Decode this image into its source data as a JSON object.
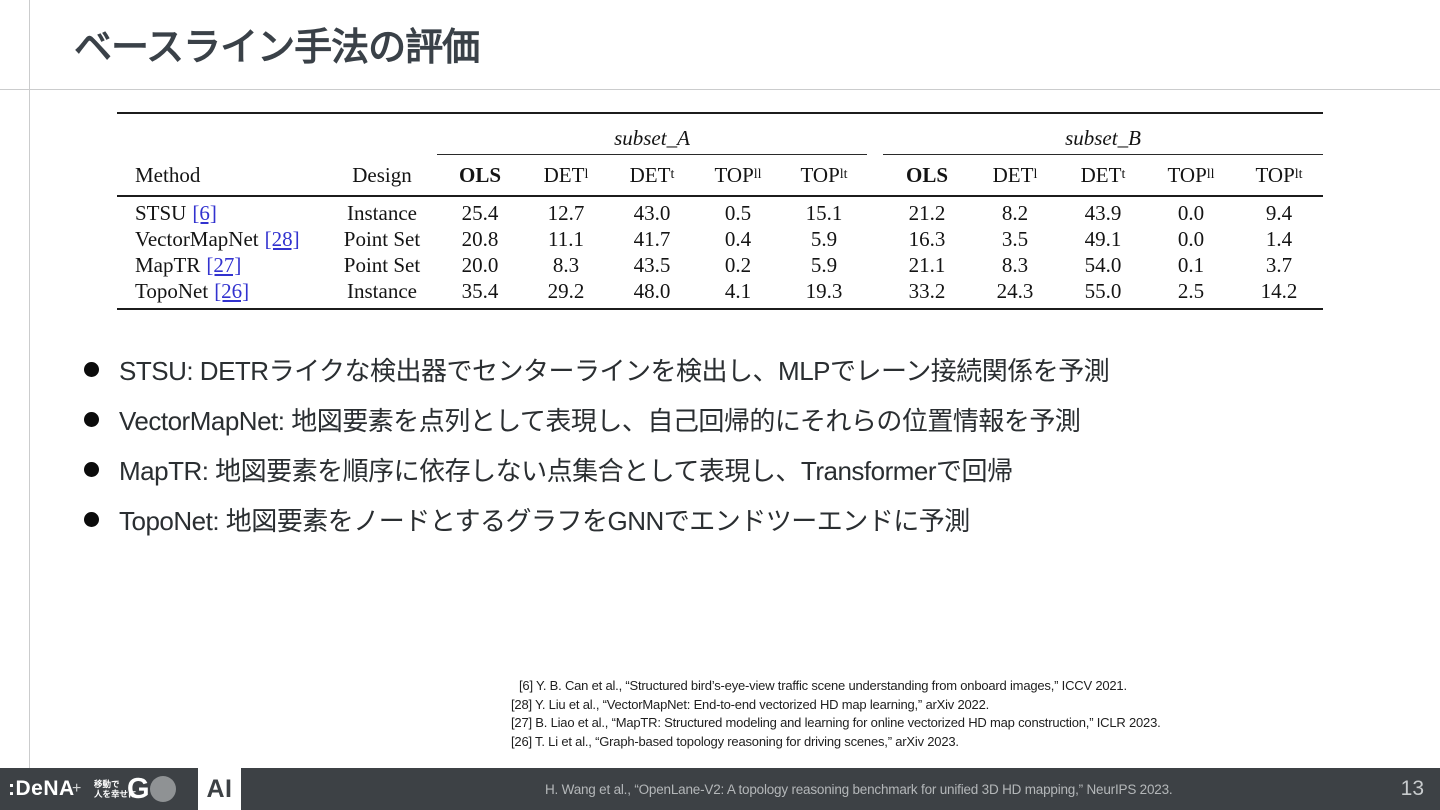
{
  "title": "ベースライン手法の評価",
  "table": {
    "group_headers": [
      "subset_A",
      "subset_B"
    ],
    "method_header": "Method",
    "design_header": "Design",
    "metric_columns": [
      {
        "base": "OLS",
        "sub": "",
        "bold": true
      },
      {
        "base": "DET",
        "sub": "l",
        "bold": false
      },
      {
        "base": "DET",
        "sub": "t",
        "bold": false
      },
      {
        "base": "TOP",
        "sub": "ll",
        "bold": false
      },
      {
        "base": "TOP",
        "sub": "lt",
        "bold": false
      }
    ],
    "rows": [
      {
        "method": "STSU",
        "ref": "[6]",
        "design": "Instance",
        "subset_a": [
          "25.4",
          "12.7",
          "43.0",
          "0.5",
          "15.1"
        ],
        "subset_b": [
          "21.2",
          "8.2",
          "43.9",
          "0.0",
          "9.4"
        ]
      },
      {
        "method": "VectorMapNet",
        "ref": "[28]",
        "design": "Point Set",
        "subset_a": [
          "20.8",
          "11.1",
          "41.7",
          "0.4",
          "5.9"
        ],
        "subset_b": [
          "16.3",
          "3.5",
          "49.1",
          "0.0",
          "1.4"
        ]
      },
      {
        "method": "MapTR",
        "ref": "[27]",
        "design": "Point Set",
        "subset_a": [
          "20.0",
          "8.3",
          "43.5",
          "0.2",
          "5.9"
        ],
        "subset_b": [
          "21.1",
          "8.3",
          "54.0",
          "0.1",
          "3.7"
        ]
      },
      {
        "method": "TopoNet",
        "ref": "[26]",
        "design": "Instance",
        "subset_a": [
          "35.4",
          "29.2",
          "48.0",
          "4.1",
          "19.3"
        ],
        "subset_b": [
          "33.2",
          "24.3",
          "55.0",
          "2.5",
          "14.2"
        ]
      }
    ]
  },
  "bullets": [
    "STSU: DETRライクな検出器でセンターラインを検出し、MLPでレーン接続関係を予測",
    "VectorMapNet: 地図要素を点列として表現し、自己回帰的にそれらの位置情報を予測",
    "MapTR: 地図要素を順序に依存しない点集合として表現し、Transformerで回帰",
    "TopoNet: 地図要素をノードとするグラフをGNNでエンドツーエンドに予測"
  ],
  "references": [
    "[6] Y. B. Can et al., “Structured bird’s-eye-view traffic scene understanding from onboard images,” ICCV 2021.",
    "[28] Y. Liu et al., “VectorMapNet: End-to-end vectorized HD map learning,” arXiv 2022.",
    "[27] B. Liao et al., “MapTR: Structured modeling and learning for online vectorized HD map construction,” ICLR 2023.",
    "[26] T. Li et al., “Graph-based topology reasoning for driving scenes,” arXiv 2023."
  ],
  "footer": {
    "dena_logo": ":DeNA",
    "plus": "+",
    "tagline_line1": "移動で",
    "tagline_line2": "人を幸せに。",
    "go_logo_letter": "G",
    "ai_logo": "AI",
    "citation": "H. Wang et al., “OpenLane-V2: A topology reasoning benchmark for unified 3D HD mapping,” NeurIPS 2023.",
    "page_number": "13"
  },
  "colors": {
    "title_text": "#3a4148",
    "body_text": "#2a2e31",
    "table_text": "#141414",
    "link_blue": "#3232cf",
    "divider_gray": "#cbcccd",
    "footer_bg": "#3d4145",
    "footer_text": "#b4b7b9",
    "page_number_text": "#c8cbcd",
    "go_circle_gray": "#8f9294"
  }
}
